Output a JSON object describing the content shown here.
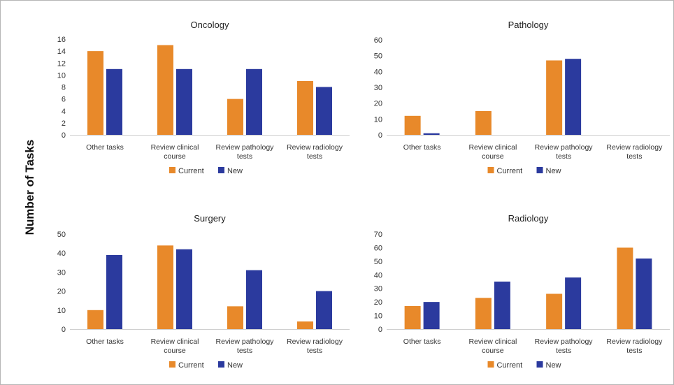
{
  "ylabel": "Number of Tasks",
  "legend": [
    "Current",
    "New"
  ],
  "colors": {
    "Current": "#E8892A",
    "New": "#2B3A9E"
  },
  "chart_data": [
    {
      "type": "bar",
      "title": "Oncology",
      "categories": [
        "Other tasks",
        "Review clinical course",
        "Review pathology tests",
        "Review radiology tests"
      ],
      "ylim": [
        0,
        16
      ],
      "yticks": [
        0,
        2,
        4,
        6,
        8,
        10,
        12,
        14,
        16
      ],
      "grid": false,
      "legend_position": "bottom",
      "series": [
        {
          "name": "Current",
          "values": [
            14,
            15,
            6,
            9
          ]
        },
        {
          "name": "New",
          "values": [
            11,
            11,
            11,
            8
          ]
        }
      ]
    },
    {
      "type": "bar",
      "title": "Pathology",
      "categories": [
        "Other tasks",
        "Review clinical course",
        "Review pathology tests",
        "Review radiology tests"
      ],
      "ylim": [
        0,
        60
      ],
      "yticks": [
        0,
        10,
        20,
        30,
        40,
        50,
        60
      ],
      "grid": false,
      "legend_position": "bottom",
      "series": [
        {
          "name": "Current",
          "values": [
            12,
            15,
            47,
            0
          ]
        },
        {
          "name": "New",
          "values": [
            1,
            0,
            48,
            0
          ]
        }
      ]
    },
    {
      "type": "bar",
      "title": "Surgery",
      "categories": [
        "Other tasks",
        "Review clinical course",
        "Review pathology tests",
        "Review radiology tests"
      ],
      "ylim": [
        0,
        50
      ],
      "yticks": [
        0,
        10,
        20,
        30,
        40,
        50
      ],
      "grid": false,
      "legend_position": "bottom",
      "series": [
        {
          "name": "Current",
          "values": [
            10,
            44,
            12,
            4
          ]
        },
        {
          "name": "New",
          "values": [
            39,
            42,
            31,
            20
          ]
        }
      ]
    },
    {
      "type": "bar",
      "title": "Radiology",
      "categories": [
        "Other tasks",
        "Review clinical course",
        "Review pathology tests",
        "Review radiology tests"
      ],
      "ylim": [
        0,
        70
      ],
      "yticks": [
        0,
        10,
        20,
        30,
        40,
        50,
        60,
        70
      ],
      "grid": false,
      "legend_position": "bottom",
      "series": [
        {
          "name": "Current",
          "values": [
            17,
            23,
            26,
            60
          ]
        },
        {
          "name": "New",
          "values": [
            20,
            35,
            38,
            52
          ]
        }
      ]
    }
  ]
}
